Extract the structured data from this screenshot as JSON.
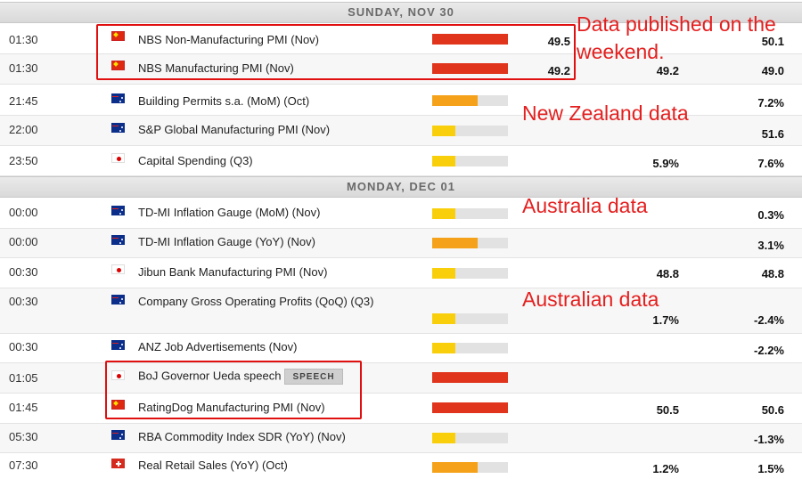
{
  "colors": {
    "high": "#e0341c",
    "medium": "#f5a21a",
    "low": "#f9cf0c",
    "empty": "#e2e2e2",
    "annotation": "#e41f1f"
  },
  "days": [
    {
      "label": "SUNDAY, NOV 30"
    },
    {
      "label": "MONDAY, DEC 01"
    }
  ],
  "rows": [
    {
      "time": "01:30",
      "flag": "flag-china-icon",
      "event": "NBS Non-Manufacturing PMI (Nov)",
      "importance": 1.0,
      "actual": "49.5",
      "consensus": "",
      "previous": "50.1"
    },
    {
      "time": "01:30",
      "flag": "flag-china-icon",
      "event": "NBS Manufacturing PMI (Nov)",
      "importance": 1.0,
      "actual": "49.2",
      "consensus": "49.2",
      "previous": "49.0"
    },
    {
      "time": "21:45",
      "flag": "flag-new-zealand-icon",
      "event": "Building Permits s.a. (MoM) (Oct)",
      "importance": 0.6,
      "actual": "",
      "consensus": "",
      "previous": "7.2%"
    },
    {
      "time": "22:00",
      "flag": "flag-new-zealand-icon",
      "event": "S&P Global Manufacturing PMI (Nov)",
      "importance": 0.3,
      "actual": "",
      "consensus": "",
      "previous": "51.6"
    },
    {
      "time": "23:50",
      "flag": "flag-japan-icon",
      "event": "Capital Spending (Q3)",
      "importance": 0.3,
      "actual": "",
      "consensus": "5.9%",
      "previous": "7.6%"
    },
    {
      "time": "00:00",
      "flag": "flag-australia-icon",
      "event": "TD-MI Inflation Gauge (MoM) (Nov)",
      "importance": 0.3,
      "actual": "",
      "consensus": "",
      "previous": "0.3%"
    },
    {
      "time": "00:00",
      "flag": "flag-australia-icon",
      "event": "TD-MI Inflation Gauge (YoY) (Nov)",
      "importance": 0.6,
      "actual": "",
      "consensus": "",
      "previous": "3.1%"
    },
    {
      "time": "00:30",
      "flag": "flag-japan-icon",
      "event": "Jibun Bank Manufacturing PMI (Nov)",
      "importance": 0.3,
      "actual": "",
      "consensus": "48.8",
      "previous": "48.8"
    },
    {
      "time": "00:30",
      "flag": "flag-australia-icon",
      "event": "Company Gross Operating Profits (QoQ) (Q3)",
      "importance": 0.3,
      "actual": "",
      "consensus": "1.7%",
      "previous": "-2.4%"
    },
    {
      "time": "00:30",
      "flag": "flag-australia-icon",
      "event": "ANZ Job Advertisements (Nov)",
      "importance": 0.3,
      "actual": "",
      "consensus": "",
      "previous": "-2.2%"
    },
    {
      "time": "01:05",
      "flag": "flag-japan-icon",
      "event": "BoJ Governor Ueda speech",
      "badge": "SPEECH",
      "importance": 1.0,
      "actual": "",
      "consensus": "",
      "previous": ""
    },
    {
      "time": "01:45",
      "flag": "flag-china-icon",
      "event": "RatingDog Manufacturing PMI (Nov)",
      "importance": 1.0,
      "actual": "",
      "consensus": "50.5",
      "previous": "50.6"
    },
    {
      "time": "05:30",
      "flag": "flag-australia-icon",
      "event": "RBA Commodity Index SDR (YoY) (Nov)",
      "importance": 0.3,
      "actual": "",
      "consensus": "",
      "previous": "-1.3%"
    },
    {
      "time": "07:30",
      "flag": "flag-switzerland-icon",
      "event": "Real Retail Sales (YoY) (Oct)",
      "importance": 0.6,
      "actual": "",
      "consensus": "1.2%",
      "previous": "1.5%"
    }
  ],
  "annotations": [
    {
      "text": "Data published on the weekend."
    },
    {
      "text": "New Zealand data"
    },
    {
      "text": "Australia data"
    },
    {
      "text": "Australian data"
    }
  ]
}
